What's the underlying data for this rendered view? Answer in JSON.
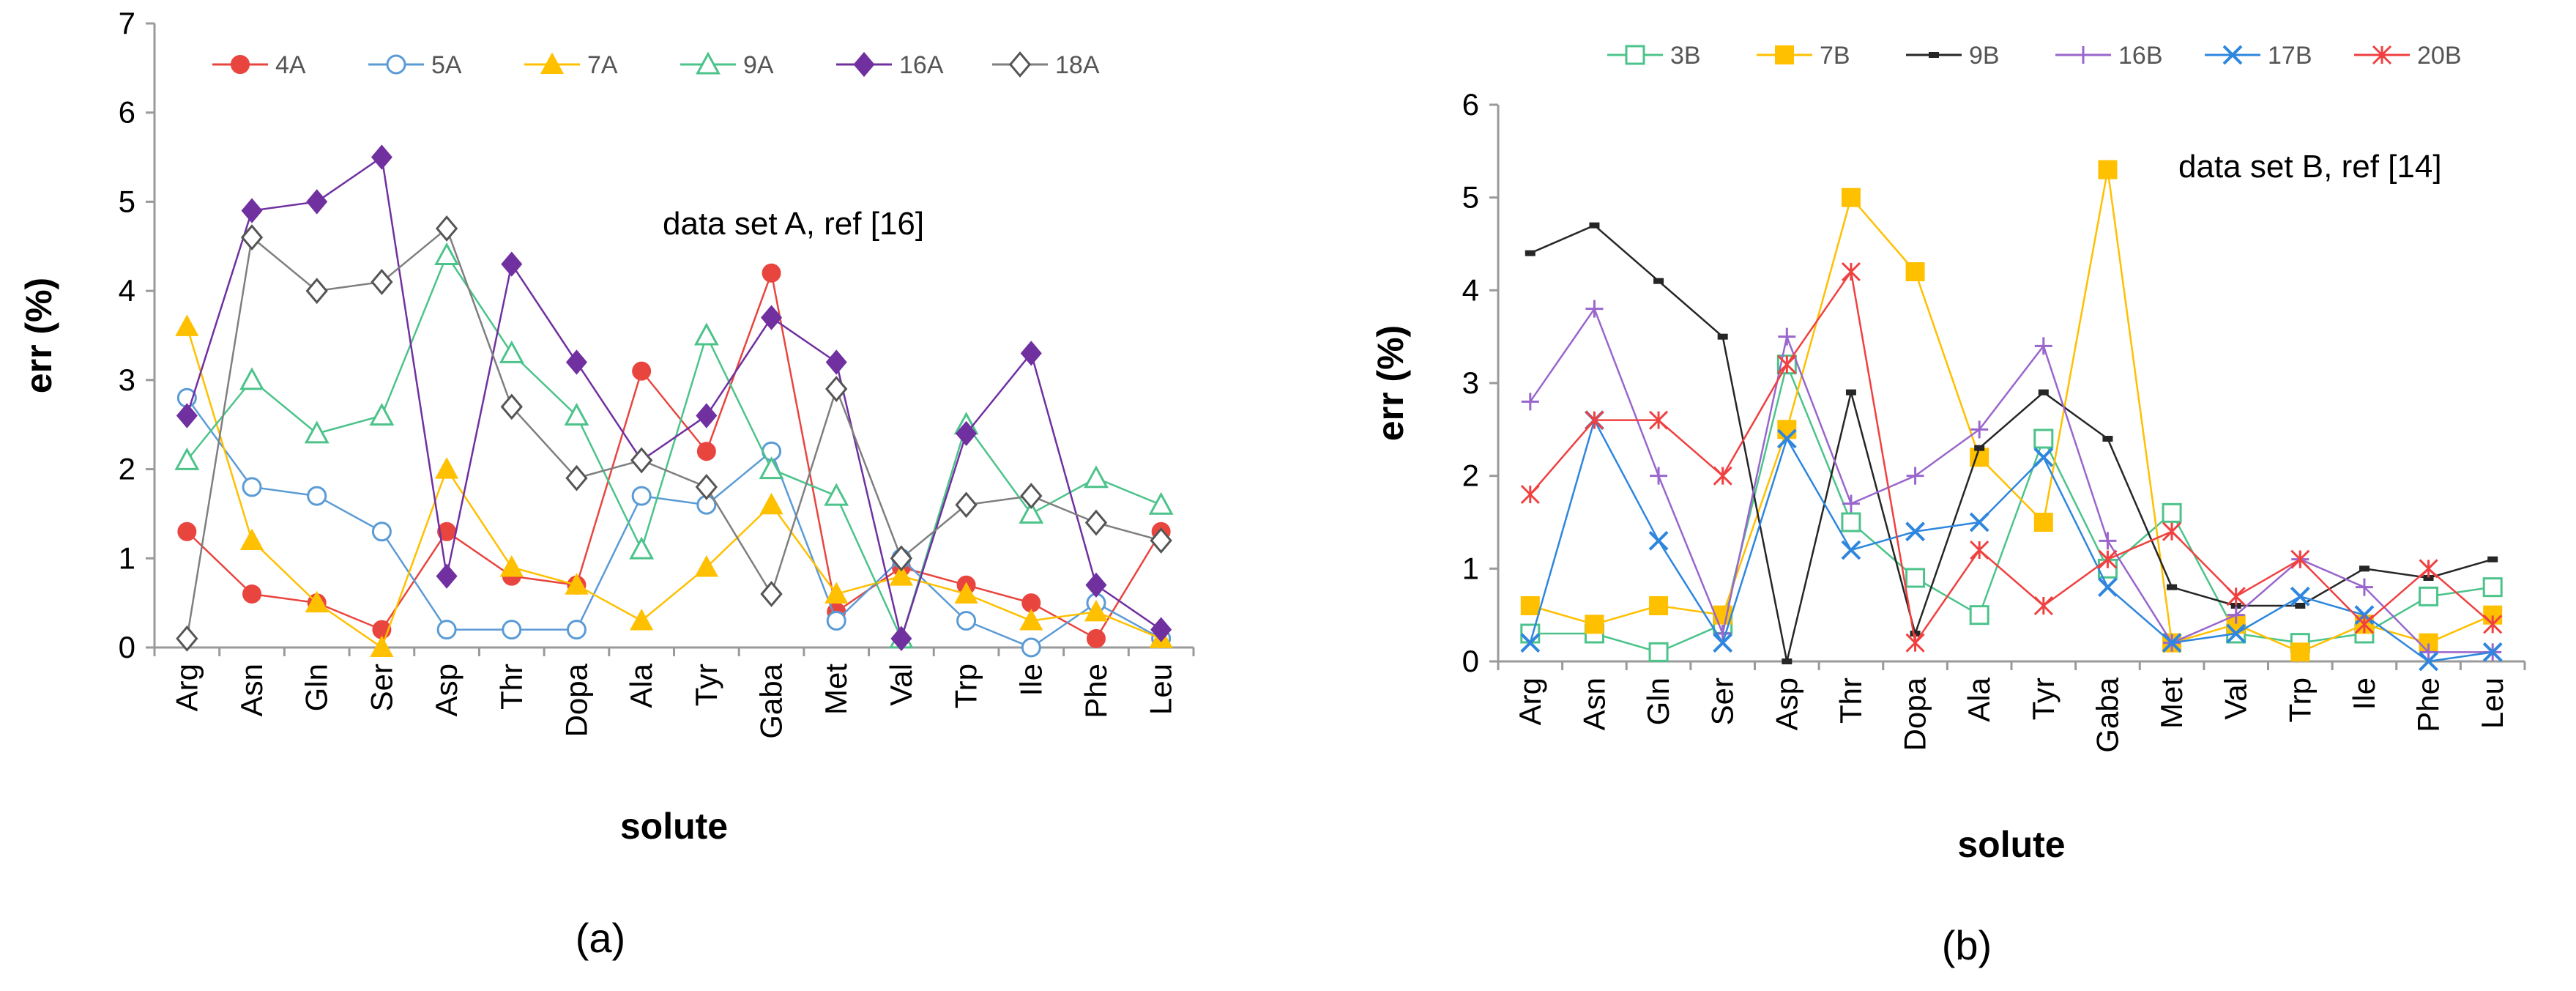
{
  "chart_data": [
    {
      "type": "line",
      "panel_label": "(a)",
      "annotation": "data set A, ref [16]",
      "xlabel": "solute",
      "ylabel": "err (%)",
      "ylim": [
        0,
        7
      ],
      "yticks": [
        "0",
        "1",
        "2",
        "3",
        "4",
        "5",
        "6",
        "7"
      ],
      "legend_position": "top",
      "categories": [
        "Arg",
        "Asn",
        "Gln",
        "Ser",
        "Asp",
        "Thr",
        "Dopa",
        "Ala",
        "Tyr",
        "Gaba",
        "Met",
        "Val",
        "Trp",
        "Ile",
        "Phe",
        "Leu"
      ],
      "series": [
        {
          "name": "4A",
          "color": "#e9453f",
          "marker": "circle-filled",
          "values": [
            1.3,
            0.6,
            0.5,
            0.2,
            1.3,
            0.8,
            0.7,
            3.1,
            2.2,
            4.2,
            0.4,
            0.9,
            0.7,
            0.5,
            0.1,
            1.3
          ]
        },
        {
          "name": "5A",
          "color": "#5b9bd5",
          "marker": "circle-open",
          "values": [
            2.8,
            1.8,
            1.7,
            1.3,
            0.2,
            0.2,
            0.2,
            1.7,
            1.6,
            2.2,
            0.3,
            1.0,
            0.3,
            0.0,
            0.5,
            0.1
          ]
        },
        {
          "name": "7A",
          "color": "#ffc000",
          "marker": "triangle-filled",
          "values": [
            3.6,
            1.2,
            0.5,
            0.0,
            2.0,
            0.9,
            0.7,
            0.3,
            0.9,
            1.6,
            0.6,
            0.8,
            0.6,
            0.3,
            0.4,
            0.1
          ]
        },
        {
          "name": "9A",
          "color": "#4cc38a",
          "marker": "triangle-open",
          "values": [
            2.1,
            3.0,
            2.4,
            2.6,
            4.4,
            3.3,
            2.6,
            1.1,
            3.5,
            2.0,
            1.7,
            0.1,
            2.5,
            1.5,
            1.9,
            1.6
          ]
        },
        {
          "name": "16A",
          "color": "#7030a0",
          "marker": "diamond-filled",
          "values": [
            2.6,
            4.9,
            5.0,
            5.5,
            0.8,
            4.3,
            3.2,
            2.1,
            2.6,
            3.7,
            3.2,
            0.1,
            2.4,
            3.3,
            0.7,
            0.2
          ]
        },
        {
          "name": "18A",
          "color": "#7f7f7f",
          "marker": "diamond-open",
          "values": [
            0.1,
            4.6,
            4.0,
            4.1,
            4.7,
            2.7,
            1.9,
            2.1,
            1.8,
            0.6,
            2.9,
            1.0,
            1.6,
            1.7,
            1.4,
            1.2
          ]
        }
      ]
    },
    {
      "type": "line",
      "panel_label": "(b)",
      "annotation": "data set B, ref [14]",
      "xlabel": "solute",
      "ylabel": "err (%)",
      "ylim": [
        0,
        6
      ],
      "yticks": [
        "0",
        "1",
        "2",
        "3",
        "4",
        "5",
        "6"
      ],
      "legend_position": "top",
      "categories": [
        "Arg",
        "Asn",
        "Gln",
        "Ser",
        "Asp",
        "Thr",
        "Dopa",
        "Ala",
        "Tyr",
        "Gaba",
        "Met",
        "Val",
        "Trp",
        "Ile",
        "Phe",
        "Leu"
      ],
      "series": [
        {
          "name": "3B",
          "color": "#4cc38a",
          "marker": "square-open",
          "values": [
            0.3,
            0.3,
            0.1,
            0.4,
            3.2,
            1.5,
            0.9,
            0.5,
            2.4,
            1.0,
            1.6,
            0.3,
            0.2,
            0.3,
            0.7,
            0.8
          ]
        },
        {
          "name": "7B",
          "color": "#ffc000",
          "marker": "square-filled",
          "values": [
            0.6,
            0.4,
            0.6,
            0.5,
            2.5,
            5.0,
            4.2,
            2.2,
            1.5,
            5.3,
            0.2,
            0.4,
            0.1,
            0.4,
            0.2,
            0.5
          ]
        },
        {
          "name": "9B",
          "color": "#262626",
          "marker": "dash",
          "values": [
            4.4,
            4.7,
            4.1,
            3.5,
            0.0,
            2.9,
            0.3,
            2.3,
            2.9,
            2.4,
            0.8,
            0.6,
            0.6,
            1.0,
            0.9,
            1.1
          ]
        },
        {
          "name": "16B",
          "color": "#9966cc",
          "marker": "plus",
          "values": [
            2.8,
            3.8,
            2.0,
            0.3,
            3.5,
            1.7,
            2.0,
            2.5,
            3.4,
            1.3,
            0.2,
            0.5,
            1.1,
            0.8,
            0.1,
            0.1
          ]
        },
        {
          "name": "17B",
          "color": "#2e86de",
          "marker": "x",
          "values": [
            0.2,
            2.6,
            1.3,
            0.2,
            2.4,
            1.2,
            1.4,
            1.5,
            2.2,
            0.8,
            0.2,
            0.3,
            0.7,
            0.5,
            0.0,
            0.1
          ]
        },
        {
          "name": "20B",
          "color": "#f04040",
          "marker": "asterisk",
          "values": [
            1.8,
            2.6,
            2.6,
            2.0,
            3.2,
            4.2,
            0.2,
            1.2,
            0.6,
            1.1,
            1.4,
            0.7,
            1.1,
            0.4,
            1.0,
            0.4
          ]
        }
      ]
    }
  ]
}
